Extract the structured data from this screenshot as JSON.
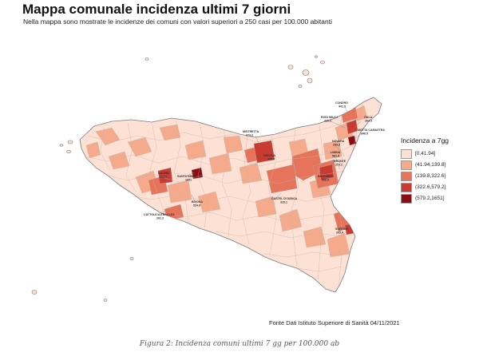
{
  "header": {
    "title": "Mappa comunale incidenza ultimi 7 giorni",
    "subtitle": "Nella mappa sono mostrate le incidenze dei comuni con valori superiori a 250 casi per 100.000 abitanti"
  },
  "legend": {
    "title": "Incidenza a 7gg",
    "items": [
      {
        "label": "[0,41.94]",
        "color": "#fde1d4"
      },
      {
        "label": "(41.94,139.8]",
        "color": "#f4aa8b"
      },
      {
        "label": "(139.8,322.6]",
        "color": "#e6745a"
      },
      {
        "label": "(322.6,579.2]",
        "color": "#c93a31"
      },
      {
        "label": "(579.2,1651]",
        "color": "#8c0c12"
      }
    ]
  },
  "map_labels": [
    {
      "name": "CONDRO",
      "value": "441.5"
    },
    {
      "name": "RODI MILICI",
      "value": "325.0"
    },
    {
      "name": "ITALA",
      "value": "264.3"
    },
    {
      "name": "MOTTA CAMASTRA",
      "value": "348.5"
    },
    {
      "name": "NOVARA",
      "value": "253.3"
    },
    {
      "name": "LIMINA",
      "value": "561.8"
    },
    {
      "name": "BRONTE",
      "value": "273.1"
    },
    {
      "name": "MISTRETTA",
      "value": "273.3"
    },
    {
      "name": "NICOSIA",
      "value": "325.4"
    },
    {
      "name": "SALEMI",
      "value": "322.1"
    },
    {
      "name": "SANTA NINFA",
      "value": "1651"
    },
    {
      "name": "BELPASSO",
      "value": "260.5"
    },
    {
      "name": "CASTEL DI IUDICA",
      "value": "329.1"
    },
    {
      "name": "BIVONA",
      "value": "524.9"
    },
    {
      "name": "CATTOLICA ERACLEA",
      "value": "291.3"
    },
    {
      "name": "SORTINO",
      "value": "263.4"
    }
  ],
  "source": "Fonte Dati Istituto Superiore di Sanità 04/11/2021",
  "caption": "Figura 2: Incidenza comuni ultimi 7 gg per 100.000 ab"
}
